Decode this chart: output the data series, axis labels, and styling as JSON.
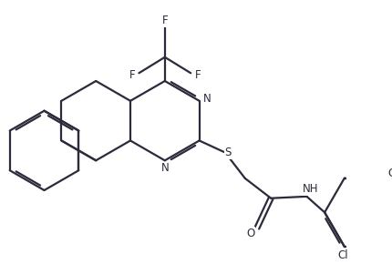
{
  "bg_color": "#ffffff",
  "line_color": "#2b2b3b",
  "line_width": 1.6,
  "figsize": [
    4.3,
    3.01
  ],
  "dpi": 100,
  "xlim": [
    0,
    10
  ],
  "ylim": [
    0,
    7
  ]
}
